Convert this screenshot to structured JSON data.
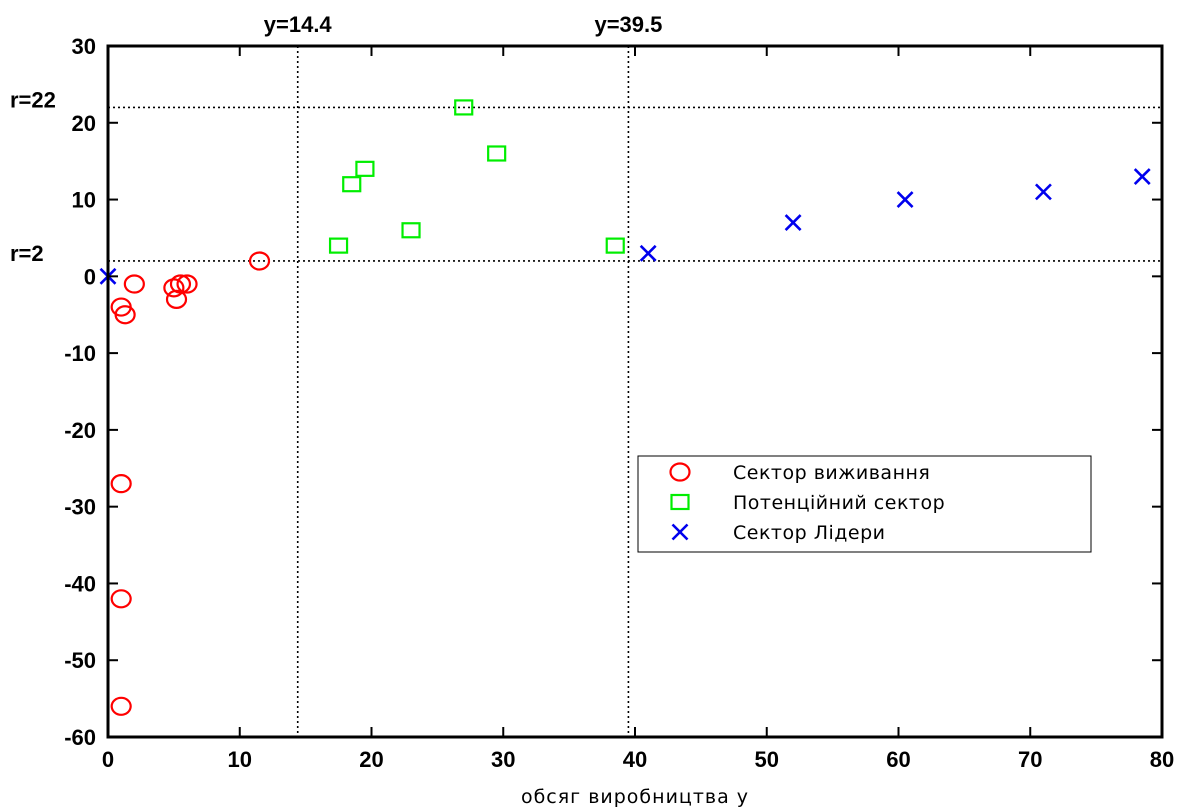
{
  "chart_data": {
    "type": "scatter",
    "title": "",
    "xlabel": "обсяг виробництва у",
    "ylabel": "",
    "xlim": [
      0,
      80
    ],
    "ylim": [
      -60,
      30
    ],
    "xticks": [
      0,
      10,
      20,
      30,
      40,
      50,
      60,
      70,
      80
    ],
    "yticks": [
      30,
      20,
      10,
      0,
      -10,
      -20,
      -30,
      -40,
      -50,
      -60
    ],
    "grid": false,
    "legend_position": "right",
    "reference_lines": {
      "vertical": [
        {
          "x": 14.4,
          "label": "y=14.4"
        },
        {
          "x": 39.5,
          "label": "y=39.5"
        }
      ],
      "horizontal": [
        {
          "y": 2,
          "label": "r=2"
        },
        {
          "y": 22,
          "label": "r=22"
        }
      ]
    },
    "series": [
      {
        "name": "Сектор виживання",
        "marker": "circle",
        "color": "#ff0000",
        "points": [
          [
            1.0,
            -56
          ],
          [
            1.0,
            -42
          ],
          [
            1.0,
            -27
          ],
          [
            1.0,
            -4
          ],
          [
            1.3,
            -5
          ],
          [
            2.0,
            -1
          ],
          [
            5.0,
            -1.5
          ],
          [
            5.2,
            -3
          ],
          [
            5.5,
            -1
          ],
          [
            6.0,
            -1
          ],
          [
            11.5,
            2
          ]
        ]
      },
      {
        "name": "Потенційний сектор",
        "marker": "square",
        "color": "#00ee00",
        "points": [
          [
            17.5,
            4
          ],
          [
            18.5,
            12
          ],
          [
            19.5,
            14
          ],
          [
            23.0,
            6
          ],
          [
            27.0,
            22
          ],
          [
            29.5,
            16
          ],
          [
            38.5,
            4
          ]
        ]
      },
      {
        "name": "Сектор Лідери",
        "marker": "x",
        "color": "#0000ee",
        "points": [
          [
            0.0,
            0
          ],
          [
            41.0,
            3
          ],
          [
            52.0,
            7
          ],
          [
            60.5,
            10
          ],
          [
            71.0,
            11
          ],
          [
            78.5,
            13
          ]
        ]
      }
    ]
  }
}
